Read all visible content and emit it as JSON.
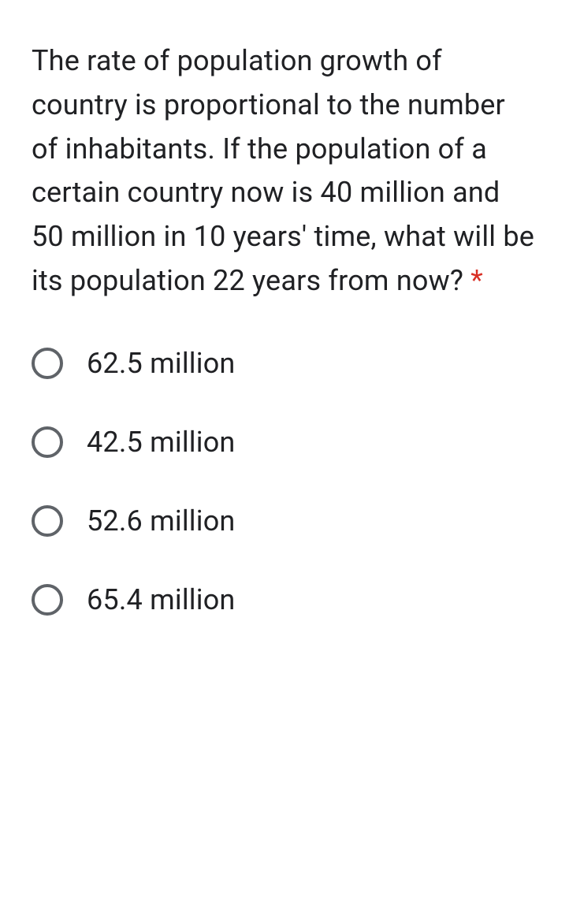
{
  "question": {
    "text": "The rate of population growth of country is proportional to the number of inhabitants. If the population of a certain country now is 40 million and 50 million in 10 years' time, what will be its population 22 years from now?",
    "required": true,
    "required_marker": "*",
    "text_color": "#202124",
    "asterisk_color": "#d93025",
    "font_size": 36
  },
  "options": [
    {
      "label": "62.5 million"
    },
    {
      "label": "42.5 million"
    },
    {
      "label": "52.6 million"
    },
    {
      "label": "65.4 million"
    }
  ],
  "styling": {
    "background_color": "#ffffff",
    "radio_border_color": "#5f6368",
    "option_text_color": "#202124",
    "option_font_size": 36
  }
}
